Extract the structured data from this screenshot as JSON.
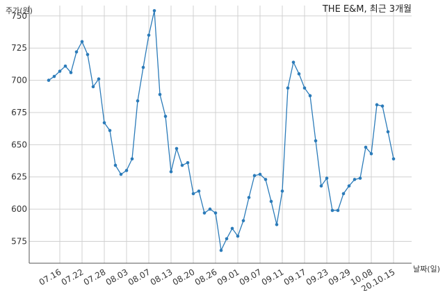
{
  "chart_data": {
    "type": "line",
    "title": "THE E&M, 최근 3개월",
    "ylabel": "주가(원)",
    "xlabel": "날짜(일)",
    "ylim": [
      558,
      758
    ],
    "yticks": [
      575,
      600,
      625,
      650,
      675,
      700,
      725,
      750
    ],
    "xtick_labels": [
      "07.16",
      "07.22",
      "07.28",
      "08.03",
      "08.07",
      "08.13",
      "08.20",
      "08.26",
      "09.01",
      "09.07",
      "09.11",
      "09.17",
      "09.23",
      "09.29",
      "10.08",
      "20.10.15"
    ],
    "xtick_positions": [
      2,
      6,
      10,
      14,
      18,
      22,
      26,
      30,
      34,
      38,
      42,
      46,
      50,
      54,
      58,
      62
    ],
    "grid": true,
    "color": "#2b7bb9",
    "series": [
      {
        "name": "",
        "values": [
          700,
          703,
          707,
          711,
          706,
          722,
          730,
          720,
          695,
          701,
          667,
          661,
          634,
          627,
          630,
          639,
          684,
          710,
          735,
          754,
          689,
          672,
          629,
          647,
          634,
          636,
          612,
          614,
          597,
          600,
          597,
          568,
          577,
          585,
          579,
          591,
          609,
          626,
          627,
          623,
          606,
          588,
          614,
          694,
          714,
          705,
          694,
          688,
          653,
          618,
          624,
          599,
          599,
          612,
          618,
          623,
          624,
          648,
          643,
          681,
          680,
          660,
          639
        ]
      }
    ]
  }
}
